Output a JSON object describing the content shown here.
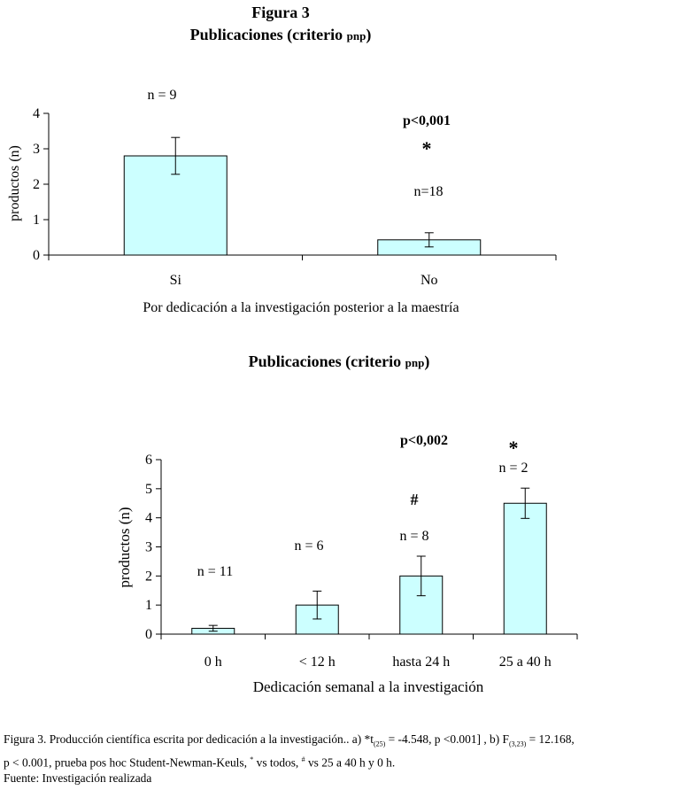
{
  "figure": {
    "label": "Figura 3",
    "subtitle_main": "Publicaciones (criterio ",
    "subtitle_sc": "pnp",
    "subtitle_end": ")"
  },
  "chart_data": [
    {
      "type": "bar",
      "title": "Publicaciones (criterio PNP)",
      "categories": [
        "Si",
        "No"
      ],
      "values": [
        2.8,
        0.43
      ],
      "errors": [
        0.52,
        0.2
      ],
      "n_labels": [
        "n = 9",
        "n=18"
      ],
      "xlabel": "Por dedicación a la investigación posterior a la maestría",
      "ylabel": "productos (n)",
      "ylim": [
        0,
        4
      ],
      "yticks": [
        "0",
        "1",
        "2",
        "3",
        "4"
      ],
      "annotations": {
        "p_value": "p<0,001",
        "significance": "*"
      }
    },
    {
      "type": "bar",
      "title": "Publicaciones (criterio PNP)",
      "categories": [
        "0 h",
        "< 12 h",
        "hasta 24 h",
        "25 a 40 h"
      ],
      "values": [
        0.2,
        1.0,
        2.0,
        4.5
      ],
      "errors": [
        0.1,
        0.48,
        0.68,
        0.52
      ],
      "n_labels": [
        "n = 11",
        "n = 6",
        "n = 8",
        "n = 2"
      ],
      "xlabel": "Dedicación semanal a la investigación",
      "ylabel": "productos (n)",
      "ylim": [
        0,
        6
      ],
      "yticks": [
        "0",
        "1",
        "2",
        "3",
        "4",
        "5",
        "6"
      ],
      "annotations": {
        "p_value": "p<0,002",
        "significance": "*",
        "hash": "#"
      }
    }
  ],
  "caption": {
    "line1_a": "Figura 3. Producción científica escrita por dedicación a la investigación.. a) *t",
    "line1_sub1": "(25)",
    "line1_b": " = -4.548, p <0.001] , b) F",
    "line1_sub2": "(3,23)",
    "line1_c": " = 12.168,",
    "line2_a": "p < 0.001, prueba pos hoc Student-Newman-Keuls, ",
    "line2_sup1": "*",
    "line2_b": " vs todos, ",
    "line2_sup2": "#",
    "line2_c": " vs 25 a 40 h y 0 h.",
    "line3": "Fuente: Investigación realizada"
  },
  "colors": {
    "bar_fill": "#ccffff",
    "bar_stroke": "#000000"
  }
}
